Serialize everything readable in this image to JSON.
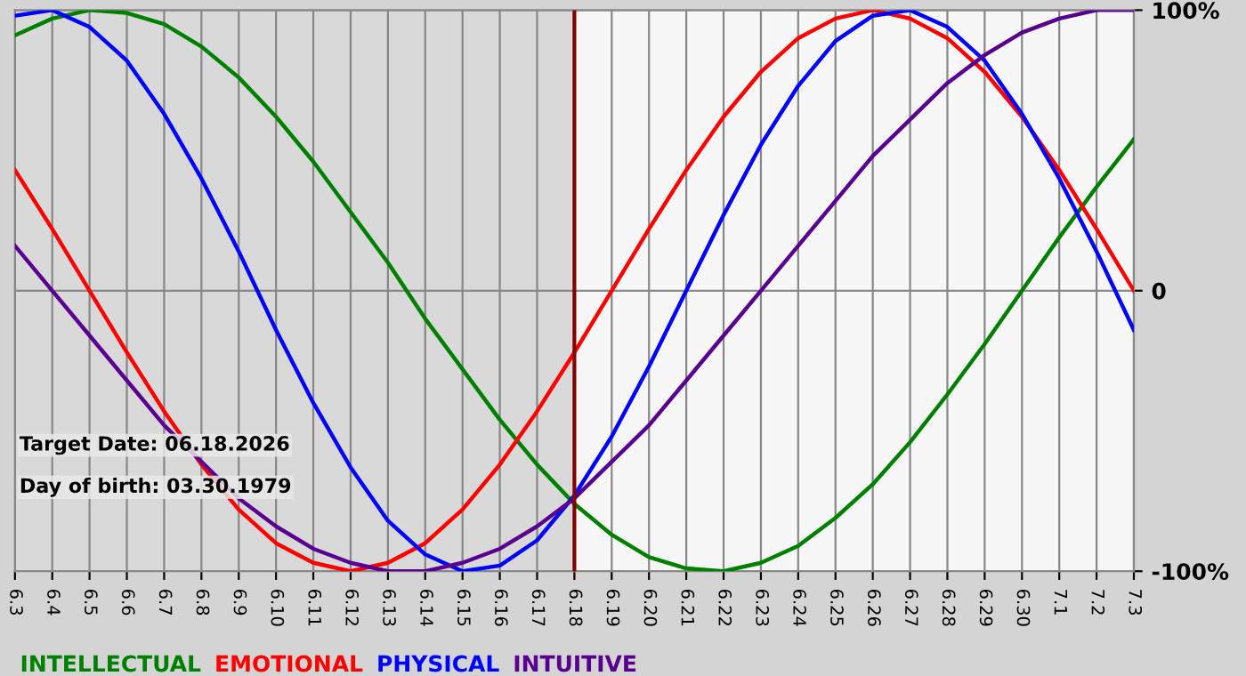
{
  "chart_data": {
    "type": "line",
    "categories": [
      "6.3",
      "6.4",
      "6.5",
      "6.6",
      "6.7",
      "6.8",
      "6.9",
      "6.10",
      "6.11",
      "6.12",
      "6.13",
      "6.14",
      "6.15",
      "6.16",
      "6.17",
      "6.18",
      "6.19",
      "6.20",
      "6.21",
      "6.22",
      "6.23",
      "6.24",
      "6.25",
      "6.26",
      "6.27",
      "6.28",
      "6.29",
      "6.30",
      "7.1",
      "7.2",
      "7.3"
    ],
    "series": [
      {
        "name": "INTELLECTUAL",
        "color": "#008000",
        "values": [
          91,
          97,
          100,
          99,
          95,
          87,
          76,
          62,
          46,
          28,
          10,
          -10,
          -28,
          -46,
          -62,
          -76,
          -87,
          -95,
          -99,
          -100,
          -97,
          -91,
          -81,
          -69,
          -54,
          -37,
          -19,
          0,
          19,
          37,
          54
        ]
      },
      {
        "name": "EMOTIONAL",
        "color": "#ff0000",
        "values": [
          43,
          22,
          0,
          -22,
          -43,
          -62,
          -78,
          -90,
          -97,
          -100,
          -97,
          -90,
          -78,
          -62,
          -43,
          -22,
          0,
          22,
          43,
          62,
          78,
          90,
          97,
          100,
          97,
          90,
          78,
          62,
          43,
          22,
          0
        ]
      },
      {
        "name": "PHYSICAL",
        "color": "#0000ff",
        "values": [
          98,
          100,
          94,
          82,
          63,
          40,
          14,
          -14,
          -40,
          -63,
          -82,
          -94,
          -100,
          -98,
          -89,
          -73,
          -52,
          -27,
          0,
          27,
          52,
          73,
          89,
          98,
          100,
          94,
          82,
          63,
          40,
          14,
          -14
        ]
      },
      {
        "name": "INTUITIVE",
        "color": "#5a0090",
        "values": [
          16,
          0,
          -16,
          -32,
          -48,
          -61,
          -74,
          -84,
          -92,
          -97,
          -100,
          -100,
          -97,
          -92,
          -84,
          -74,
          -61,
          -48,
          -32,
          -16,
          0,
          16,
          32,
          48,
          61,
          74,
          84,
          92,
          97,
          100,
          100
        ]
      }
    ],
    "ylim": [
      -100,
      100
    ],
    "yticks": [
      {
        "value": 100,
        "label": "100%"
      },
      0,
      {
        "value": -100,
        "label": "-100%"
      }
    ],
    "ref_lines": [
      {
        "axis": "x",
        "value": "6.18",
        "color": "#800000"
      }
    ],
    "bands": [
      {
        "axis": "x",
        "from": "6.3",
        "to": "6.18",
        "color": "#d9d9d9"
      }
    ],
    "annotations": [
      "Target Date: 06.18.2026",
      "Day of birth: 03.30.1979"
    ],
    "grid": true,
    "legend": "bottom left",
    "marker": "none",
    "line_style": "solid"
  }
}
